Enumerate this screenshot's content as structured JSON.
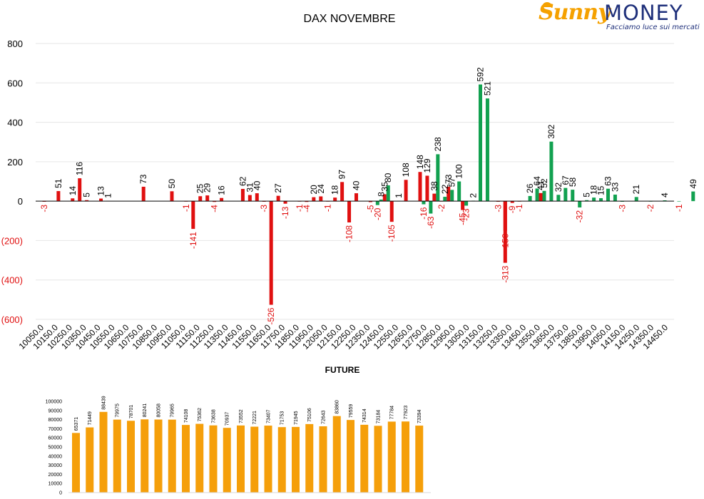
{
  "logo": {
    "brand_left": "Sunny",
    "brand_right": "MONEY",
    "tagline": "Facciamo luce sui mercati"
  },
  "colors": {
    "negative": "#e01010",
    "positive": "#12a150",
    "future": "#f59f0a",
    "text": "#000000",
    "grid": "#e6e6e6"
  },
  "chart_data": [
    {
      "type": "bar",
      "title": "DAX NOVEMBRE",
      "ylim": [
        -600,
        800
      ],
      "yticks": [
        800,
        600,
        400,
        200,
        0,
        -200,
        -400,
        -600
      ],
      "ytick_labels": [
        "800",
        "600",
        "400",
        "200",
        "0",
        "(200)",
        "(400)",
        "(600)"
      ],
      "xtick_labels": [
        "10050.0",
        "10150.0",
        "10250.0",
        "10350.0",
        "10450.0",
        "10550.0",
        "10650.0",
        "10750.0",
        "10850.0",
        "10950.0",
        "11050.0",
        "11150.0",
        "11250.0",
        "11350.0",
        "11450.0",
        "11550.0",
        "11650.0",
        "11750.0",
        "11850.0",
        "11950.0",
        "12050.0",
        "12150.0",
        "12250.0",
        "12350.0",
        "12450.0",
        "12550.0",
        "12650.0",
        "12750.0",
        "12850.0",
        "12950.0",
        "13050.0",
        "13150.0",
        "13250.0",
        "13350.0",
        "13450.0",
        "13550.0",
        "13650.0",
        "13750.0",
        "13850.0",
        "13950.0",
        "14050.0",
        "14150.0",
        "14250.0",
        "14350.0",
        "14450.0"
      ],
      "series": [
        {
          "values": [
            {
              "x": 10050,
              "y": -3
            },
            {
              "x": 10150,
              "y": 51
            },
            {
              "x": 10250,
              "y": 14
            },
            {
              "x": 10300,
              "y": 116
            },
            {
              "x": 10350,
              "y": 5
            },
            {
              "x": 10450,
              "y": 13
            },
            {
              "x": 10500,
              "y": 1
            },
            {
              "x": 10750,
              "y": 73
            },
            {
              "x": 10950,
              "y": 50
            },
            {
              "x": 11050,
              "y": -1
            },
            {
              "x": 11100,
              "y": -141
            },
            {
              "x": 11150,
              "y": 25
            },
            {
              "x": 11200,
              "y": 29
            },
            {
              "x": 11250,
              "y": -4
            },
            {
              "x": 11300,
              "y": 16
            },
            {
              "x": 11450,
              "y": 62
            },
            {
              "x": 11500,
              "y": 31
            },
            {
              "x": 11550,
              "y": 40
            },
            {
              "x": 11600,
              "y": -3
            },
            {
              "x": 11650,
              "y": -526
            },
            {
              "x": 11700,
              "y": 27
            },
            {
              "x": 11750,
              "y": -13
            },
            {
              "x": 11850,
              "y": -1
            },
            {
              "x": 11900,
              "y": -4
            },
            {
              "x": 11950,
              "y": 20
            },
            {
              "x": 12000,
              "y": 24
            },
            {
              "x": 12050,
              "y": -1
            },
            {
              "x": 12100,
              "y": 18
            },
            {
              "x": 12150,
              "y": 97
            },
            {
              "x": 12200,
              "y": -108
            },
            {
              "x": 12250,
              "y": 40
            },
            {
              "x": 12350,
              "y": -5
            },
            {
              "x": 12450,
              "y": 35
            },
            {
              "x": 12500,
              "y": -105
            },
            {
              "x": 12550,
              "y": 1
            },
            {
              "x": 12600,
              "y": 108
            },
            {
              "x": 12700,
              "y": 148
            },
            {
              "x": 12750,
              "y": 129
            },
            {
              "x": 12800,
              "y": 38
            },
            {
              "x": 12850,
              "y": -2
            },
            {
              "x": 12900,
              "y": 73
            },
            {
              "x": 13000,
              "y": -45
            },
            {
              "x": 13250,
              "y": -3
            },
            {
              "x": 13300,
              "y": -150
            },
            {
              "x": 13350,
              "y": -9
            },
            {
              "x": 13400,
              "y": -1
            },
            {
              "x": 13550,
              "y": 41
            }
          ]
        },
        {
          "values": [
            {
              "x": 12400,
              "y": -20
            },
            {
              "x": 12425,
              "y": 8
            },
            {
              "x": 12475,
              "y": 80
            },
            {
              "x": 12725,
              "y": -16
            },
            {
              "x": 12775,
              "y": -63
            },
            {
              "x": 12825,
              "y": 238
            },
            {
              "x": 12875,
              "y": 22
            },
            {
              "x": 12925,
              "y": 57
            },
            {
              "x": 12975,
              "y": 100
            },
            {
              "x": 13025,
              "y": -23
            },
            {
              "x": 13075,
              "y": 2
            },
            {
              "x": 13125,
              "y": 592
            },
            {
              "x": 13175,
              "y": 521
            },
            {
              "x": 13475,
              "y": 26
            },
            {
              "x": 13525,
              "y": 64
            },
            {
              "x": 13575,
              "y": 52
            },
            {
              "x": 13625,
              "y": 302
            },
            {
              "x": 13675,
              "y": 32
            },
            {
              "x": 13725,
              "y": 67
            },
            {
              "x": 13775,
              "y": 58
            },
            {
              "x": 13825,
              "y": -32
            },
            {
              "x": 13875,
              "y": 5
            },
            {
              "x": 13925,
              "y": 18
            },
            {
              "x": 13975,
              "y": 15
            },
            {
              "x": 14025,
              "y": 63
            },
            {
              "x": 14075,
              "y": 33
            },
            {
              "x": 14125,
              "y": -3
            },
            {
              "x": 14225,
              "y": 21
            },
            {
              "x": 14325,
              "y": -2
            },
            {
              "x": 14425,
              "y": 4
            },
            {
              "x": 14525,
              "y": -1
            },
            {
              "x": 14625,
              "y": 49
            }
          ]
        },
        {
          "values": [
            {
              "x": 13300,
              "y": -313
            }
          ]
        }
      ]
    },
    {
      "type": "bar",
      "title": "FUTURE",
      "ylim": [
        0,
        100000
      ],
      "yticks": [
        0,
        10000,
        20000,
        30000,
        40000,
        50000,
        60000,
        70000,
        80000,
        90000,
        100000
      ],
      "values": [
        65371,
        71449,
        88439,
        79975,
        78701,
        80241,
        80058,
        79965,
        74108,
        75362,
        73638,
        70937,
        73552,
        72221,
        73407,
        71753,
        71945,
        75106,
        72643,
        83860,
        79559,
        74314,
        73184,
        77784,
        77923,
        73394
      ]
    }
  ]
}
